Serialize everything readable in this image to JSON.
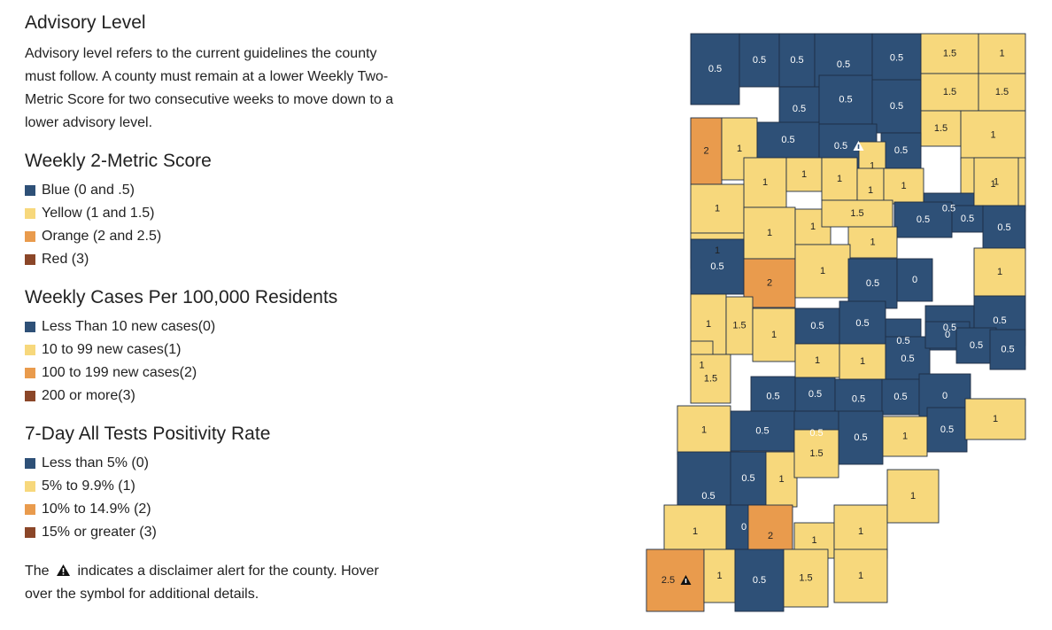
{
  "advisory": {
    "title": "Advisory Level",
    "text": "Advisory level refers to the current guidelines the county must follow. A county must remain at a lower Weekly Two-Metric Score for two consecutive weeks to move down to a lower advisory level."
  },
  "colors": {
    "blue": "#2e5077",
    "yellow": "#f7d87c",
    "orange": "#e99b4d",
    "red": "#8b4628"
  },
  "score_legend": {
    "title": "Weekly 2-Metric Score",
    "items": [
      {
        "label": "Blue (0 and .5)",
        "color": "#2e5077"
      },
      {
        "label": "Yellow (1 and 1.5)",
        "color": "#f7d87c"
      },
      {
        "label": "Orange (2 and 2.5)",
        "color": "#e99b4d"
      },
      {
        "label": "Red (3)",
        "color": "#8b4628"
      }
    ]
  },
  "cases_legend": {
    "title": "Weekly Cases Per 100,000 Residents",
    "items": [
      {
        "label": "Less Than 10 new cases(0)",
        "color": "#2e5077"
      },
      {
        "label": "10 to 99 new cases(1)",
        "color": "#f7d87c"
      },
      {
        "label": "100 to 199 new cases(2)",
        "color": "#e99b4d"
      },
      {
        "label": "200 or more(3)",
        "color": "#8b4628"
      }
    ]
  },
  "positivity_legend": {
    "title": "7-Day All Tests Positivity Rate",
    "items": [
      {
        "label": "Less than 5% (0)",
        "color": "#2e5077"
      },
      {
        "label": "5% to 9.9% (1)",
        "color": "#f7d87c"
      },
      {
        "label": "10% to 14.9% (2)",
        "color": "#e99b4d"
      },
      {
        "label": "15% or greater (3)",
        "color": "#8b4628"
      }
    ]
  },
  "disclaimer": {
    "before": "The",
    "icon": "warning-triangle-icon",
    "after": "indicates a disclaimer alert for the county. Hover over the symbol for additional details."
  },
  "counties": [
    {
      "score": "0.5"
    },
    {
      "score": "0.5"
    },
    {
      "score": "0.5"
    },
    {
      "score": "0.5"
    },
    {
      "score": "0.5"
    },
    {
      "score": "1.5"
    },
    {
      "score": "1"
    },
    {
      "score": "0.5"
    },
    {
      "score": "0.5"
    },
    {
      "score": "0.5"
    },
    {
      "score": "1.5"
    },
    {
      "score": "1.5"
    },
    {
      "score": "2"
    },
    {
      "score": "1"
    },
    {
      "score": "0.5"
    },
    {
      "score": "0.5",
      "alert": true
    },
    {
      "score": "1.5"
    },
    {
      "score": "1"
    },
    {
      "score": "0.5"
    },
    {
      "score": "1"
    },
    {
      "score": "1"
    },
    {
      "score": "1"
    },
    {
      "score": "1"
    },
    {
      "score": "1"
    },
    {
      "score": "1"
    },
    {
      "score": "1"
    },
    {
      "score": "1"
    },
    {
      "score": "0.5"
    },
    {
      "score": "1"
    },
    {
      "score": "0.5"
    },
    {
      "score": "0.5"
    },
    {
      "score": "1"
    },
    {
      "score": "1"
    },
    {
      "score": "1"
    },
    {
      "score": "1.5"
    },
    {
      "score": "1"
    },
    {
      "score": "0.5"
    },
    {
      "score": "0.5"
    },
    {
      "score": "2"
    },
    {
      "score": "1"
    },
    {
      "score": "0.5"
    },
    {
      "score": "0"
    },
    {
      "score": "1"
    },
    {
      "score": "1"
    },
    {
      "score": "1.5"
    },
    {
      "score": "1"
    },
    {
      "score": "0.5"
    },
    {
      "score": "0.5"
    },
    {
      "score": "0.5"
    },
    {
      "score": "0.5"
    },
    {
      "score": "0.5"
    },
    {
      "score": "1"
    },
    {
      "score": "1"
    },
    {
      "score": "1"
    },
    {
      "score": "0.5"
    },
    {
      "score": "0"
    },
    {
      "score": "0.5"
    },
    {
      "score": "0.5"
    },
    {
      "score": "1.5"
    },
    {
      "score": "0.5"
    },
    {
      "score": "0.5"
    },
    {
      "score": "0.5"
    },
    {
      "score": "0.5"
    },
    {
      "score": "0"
    },
    {
      "score": "1"
    },
    {
      "score": "0.5"
    },
    {
      "score": "0.5"
    },
    {
      "score": "0.5"
    },
    {
      "score": "1"
    },
    {
      "score": "0.5"
    },
    {
      "score": "1"
    },
    {
      "score": "0.5"
    },
    {
      "score": "0.5"
    },
    {
      "score": "1"
    },
    {
      "score": "1.5"
    },
    {
      "score": "1"
    },
    {
      "score": "0"
    },
    {
      "score": "2"
    },
    {
      "score": "1"
    },
    {
      "score": "1"
    },
    {
      "score": "1"
    },
    {
      "score": "2.5",
      "alert": true
    },
    {
      "score": "1"
    },
    {
      "score": "0.5"
    },
    {
      "score": "1.5"
    },
    {
      "score": "1"
    },
    {
      "score": "1"
    },
    {
      "score": "1"
    },
    {
      "score": "1"
    },
    {
      "score": "1"
    },
    {
      "score": "1"
    },
    {
      "score": "1"
    }
  ]
}
